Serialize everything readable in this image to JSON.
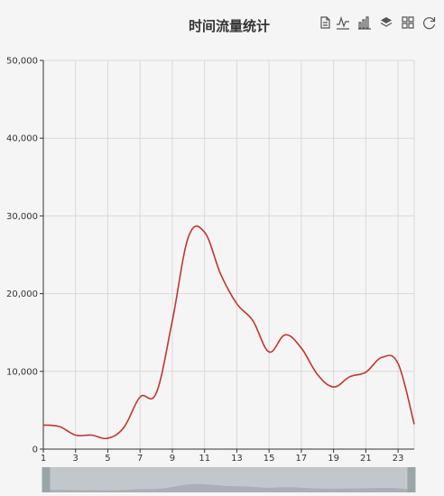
{
  "chart_data": {
    "type": "line",
    "title": "时间流量统计",
    "x": [
      1,
      2,
      3,
      4,
      5,
      6,
      7,
      8,
      9,
      10,
      11,
      12,
      13,
      14,
      15,
      16,
      17,
      18,
      19,
      20,
      21,
      22,
      23,
      24
    ],
    "x_tick_labels": [
      "1",
      "3",
      "5",
      "7",
      "9",
      "11",
      "13",
      "15",
      "17",
      "19",
      "21",
      "23"
    ],
    "series": [
      {
        "values": [
          3100,
          2900,
          1800,
          1800,
          1400,
          2800,
          6700,
          7200,
          16500,
          27300,
          27900,
          22500,
          18700,
          16500,
          12500,
          14700,
          13000,
          9600,
          8000,
          9300,
          9900,
          11800,
          11000,
          3200
        ]
      }
    ],
    "ylim": [
      0,
      50000
    ],
    "y_tick_labels": [
      "0",
      "10,000",
      "20,000",
      "30,000",
      "40,000",
      "50,000"
    ],
    "y_ticks": [
      0,
      10000,
      20000,
      30000,
      40000,
      50000
    ],
    "xlabel": "",
    "ylabel": "",
    "grid": true,
    "legend": "none",
    "line_color": "#c23531",
    "smooth": true,
    "data_zoom": {
      "start_percent": 0,
      "end_percent": 100
    }
  },
  "toolbox": {
    "items": [
      {
        "icon": "data-view-icon"
      },
      {
        "icon": "line-chart-icon"
      },
      {
        "icon": "bar-chart-icon"
      },
      {
        "icon": "stack-icon"
      },
      {
        "icon": "tiled-icon"
      },
      {
        "icon": "restore-icon"
      }
    ]
  }
}
